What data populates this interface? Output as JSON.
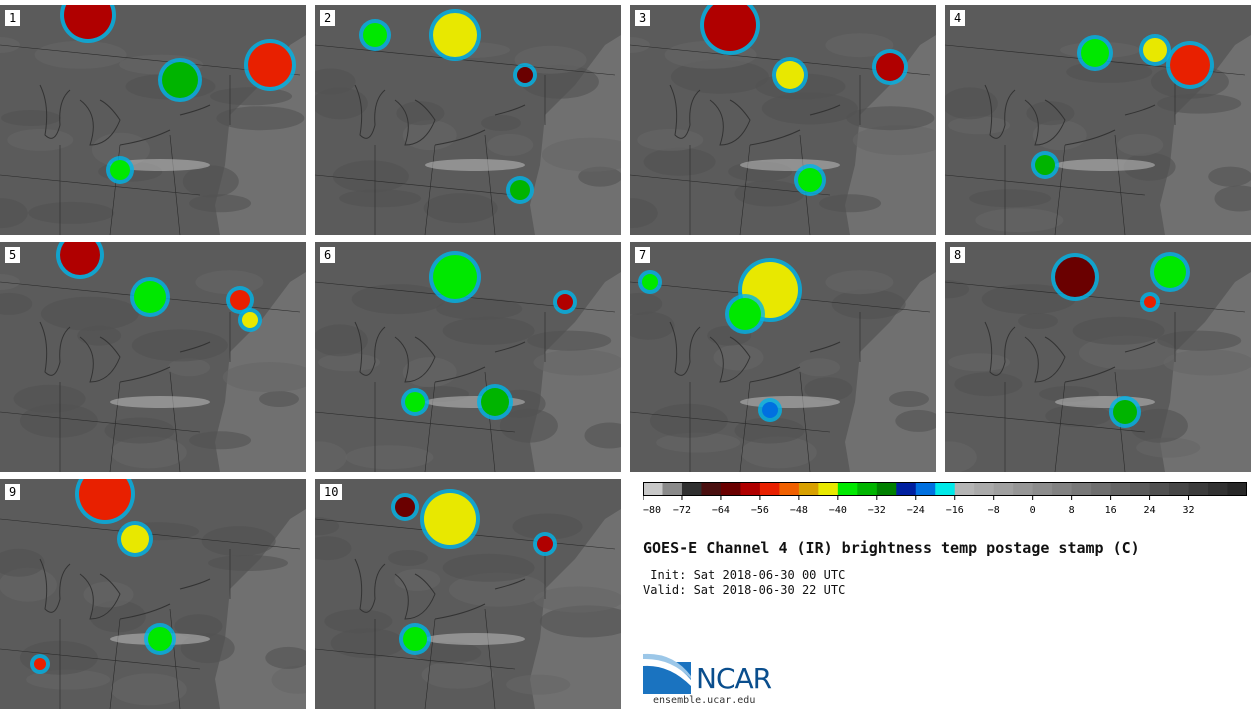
{
  "panels": [
    {
      "label": "1"
    },
    {
      "label": "2"
    },
    {
      "label": "3"
    },
    {
      "label": "4"
    },
    {
      "label": "5"
    },
    {
      "label": "6"
    },
    {
      "label": "7"
    },
    {
      "label": "8"
    },
    {
      "label": "9"
    },
    {
      "label": "10"
    }
  ],
  "colorbar": {
    "ticks": [
      "−80",
      "−72",
      "−64",
      "−56",
      "−48",
      "−40",
      "−32",
      "−24",
      "−16",
      "−8",
      "0",
      "8",
      "16",
      "24",
      "32"
    ],
    "colors": [
      "#c8c8c8",
      "#8a8a8a",
      "#303030",
      "#4a1010",
      "#6a0000",
      "#b00000",
      "#e82000",
      "#f06000",
      "#d8a000",
      "#e8e800",
      "#00e800",
      "#00b400",
      "#008000",
      "#0020a0",
      "#0070e0",
      "#00e8e8",
      "#b4b4b4",
      "#aaaaaa",
      "#a0a0a0",
      "#969696",
      "#8c8c8c",
      "#828282",
      "#787878",
      "#6e6e6e",
      "#646464",
      "#5a5a5a",
      "#505050",
      "#464646",
      "#3c3c3c",
      "#323232",
      "#282828"
    ]
  },
  "title": "GOES-E Channel 4 (IR) brightness temp postage stamp (C)",
  "init": " Init: Sat 2018-06-30 00 UTC",
  "valid": "Valid: Sat 2018-06-30 22 UTC",
  "logo": {
    "text": "NCAR",
    "url": "ensemble.ucar.edu"
  }
}
